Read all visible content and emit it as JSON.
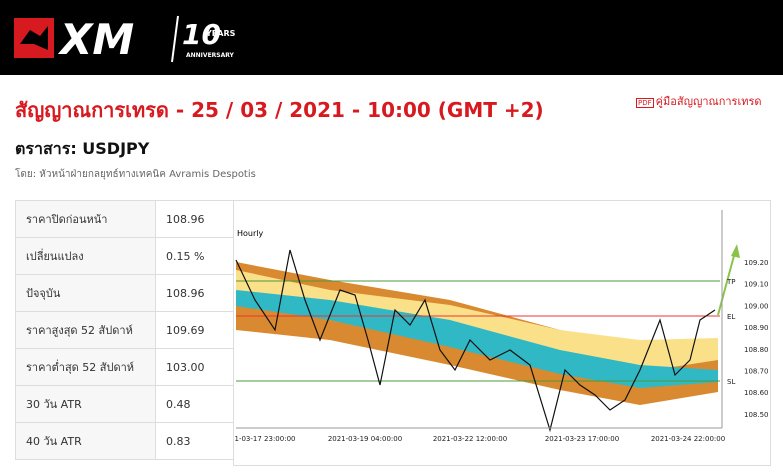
{
  "header": {
    "logo": "XM",
    "anniversary_number": "10",
    "anniversary_years": "YEARS",
    "anniversary_text": "ANNIVERSARY"
  },
  "title": "สัญญาณการเทรด - 25 / 03 / 2021 - 10:00 (GMT +2)",
  "guide_link": "คู่มือสัญญาณการเทรด",
  "instrument": "ตราสาร: USDJPY",
  "author": "โดย: หัวหน้าฝ่ายกลยุทธ์ทางเทคนิค Avramis Despotis",
  "table": {
    "rows": [
      [
        "ราคาปิดก่อนหน้า",
        "108.96"
      ],
      [
        "เปลี่ยนแปลง",
        "0.15 %"
      ],
      [
        "ปัจจุบัน",
        "108.96"
      ],
      [
        "ราคาสูงสุด 52 สัปดาห์",
        "109.69"
      ],
      [
        "ราคาต่ำสุด 52 สัปดาห์",
        "103.00"
      ],
      [
        "30 วัน ATR",
        "0.48"
      ],
      [
        "40 วัน ATR",
        "0.83"
      ]
    ]
  },
  "chart_image": {
    "timeframe": "Hourly",
    "y_labels": [
      "109.20",
      "109.10",
      "109.00",
      "108.90",
      "108.80",
      "108.70",
      "108.60",
      "108.50"
    ],
    "x_labels": [
      "1-03-17 23:00:00",
      "2021-03-19 04:00:00",
      "2021-03-22 12:00:00",
      "2021-03-23 17:00:00",
      "2021-03-24 22:00:00"
    ],
    "markers": [
      "TP",
      "EL",
      "SL"
    ]
  }
}
